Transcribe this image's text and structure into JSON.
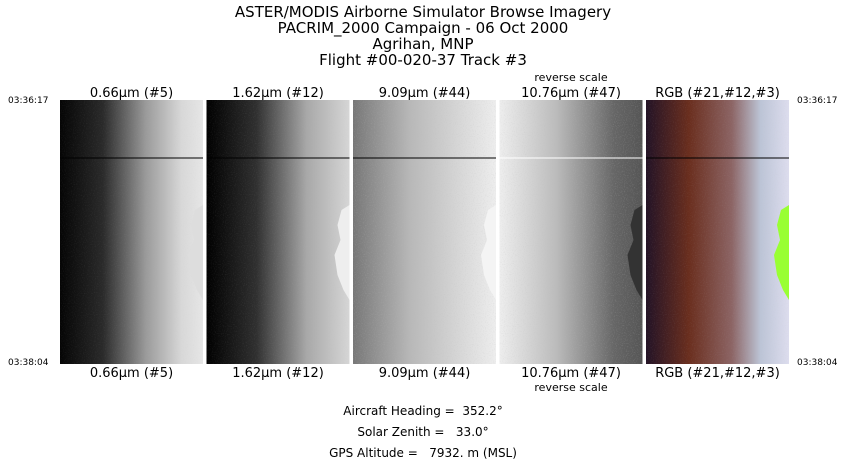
{
  "header": {
    "lines": [
      "ASTER/MODIS Airborne Simulator Browse Imagery",
      "PACRIM_2000 Campaign - 06 Oct 2000",
      "Agrihan, MNP",
      "Flight #00-020-37 Track #3"
    ]
  },
  "times": {
    "top": "03:36:17",
    "bottom": "03:38:04"
  },
  "panels": [
    {
      "label": "0.66μm (#5)"
    },
    {
      "label": "1.62μm (#12)"
    },
    {
      "label": "9.09μm (#44)"
    },
    {
      "label": "10.76μm (#47)",
      "note": "reverse scale"
    },
    {
      "label": "RGB (#21,#12,#3)"
    }
  ],
  "footer": {
    "lines": [
      "Aircraft Heading =  352.2°",
      "Solar Zenith =   33.0°",
      "GPS Altitude =   7932. m (MSL)"
    ]
  }
}
